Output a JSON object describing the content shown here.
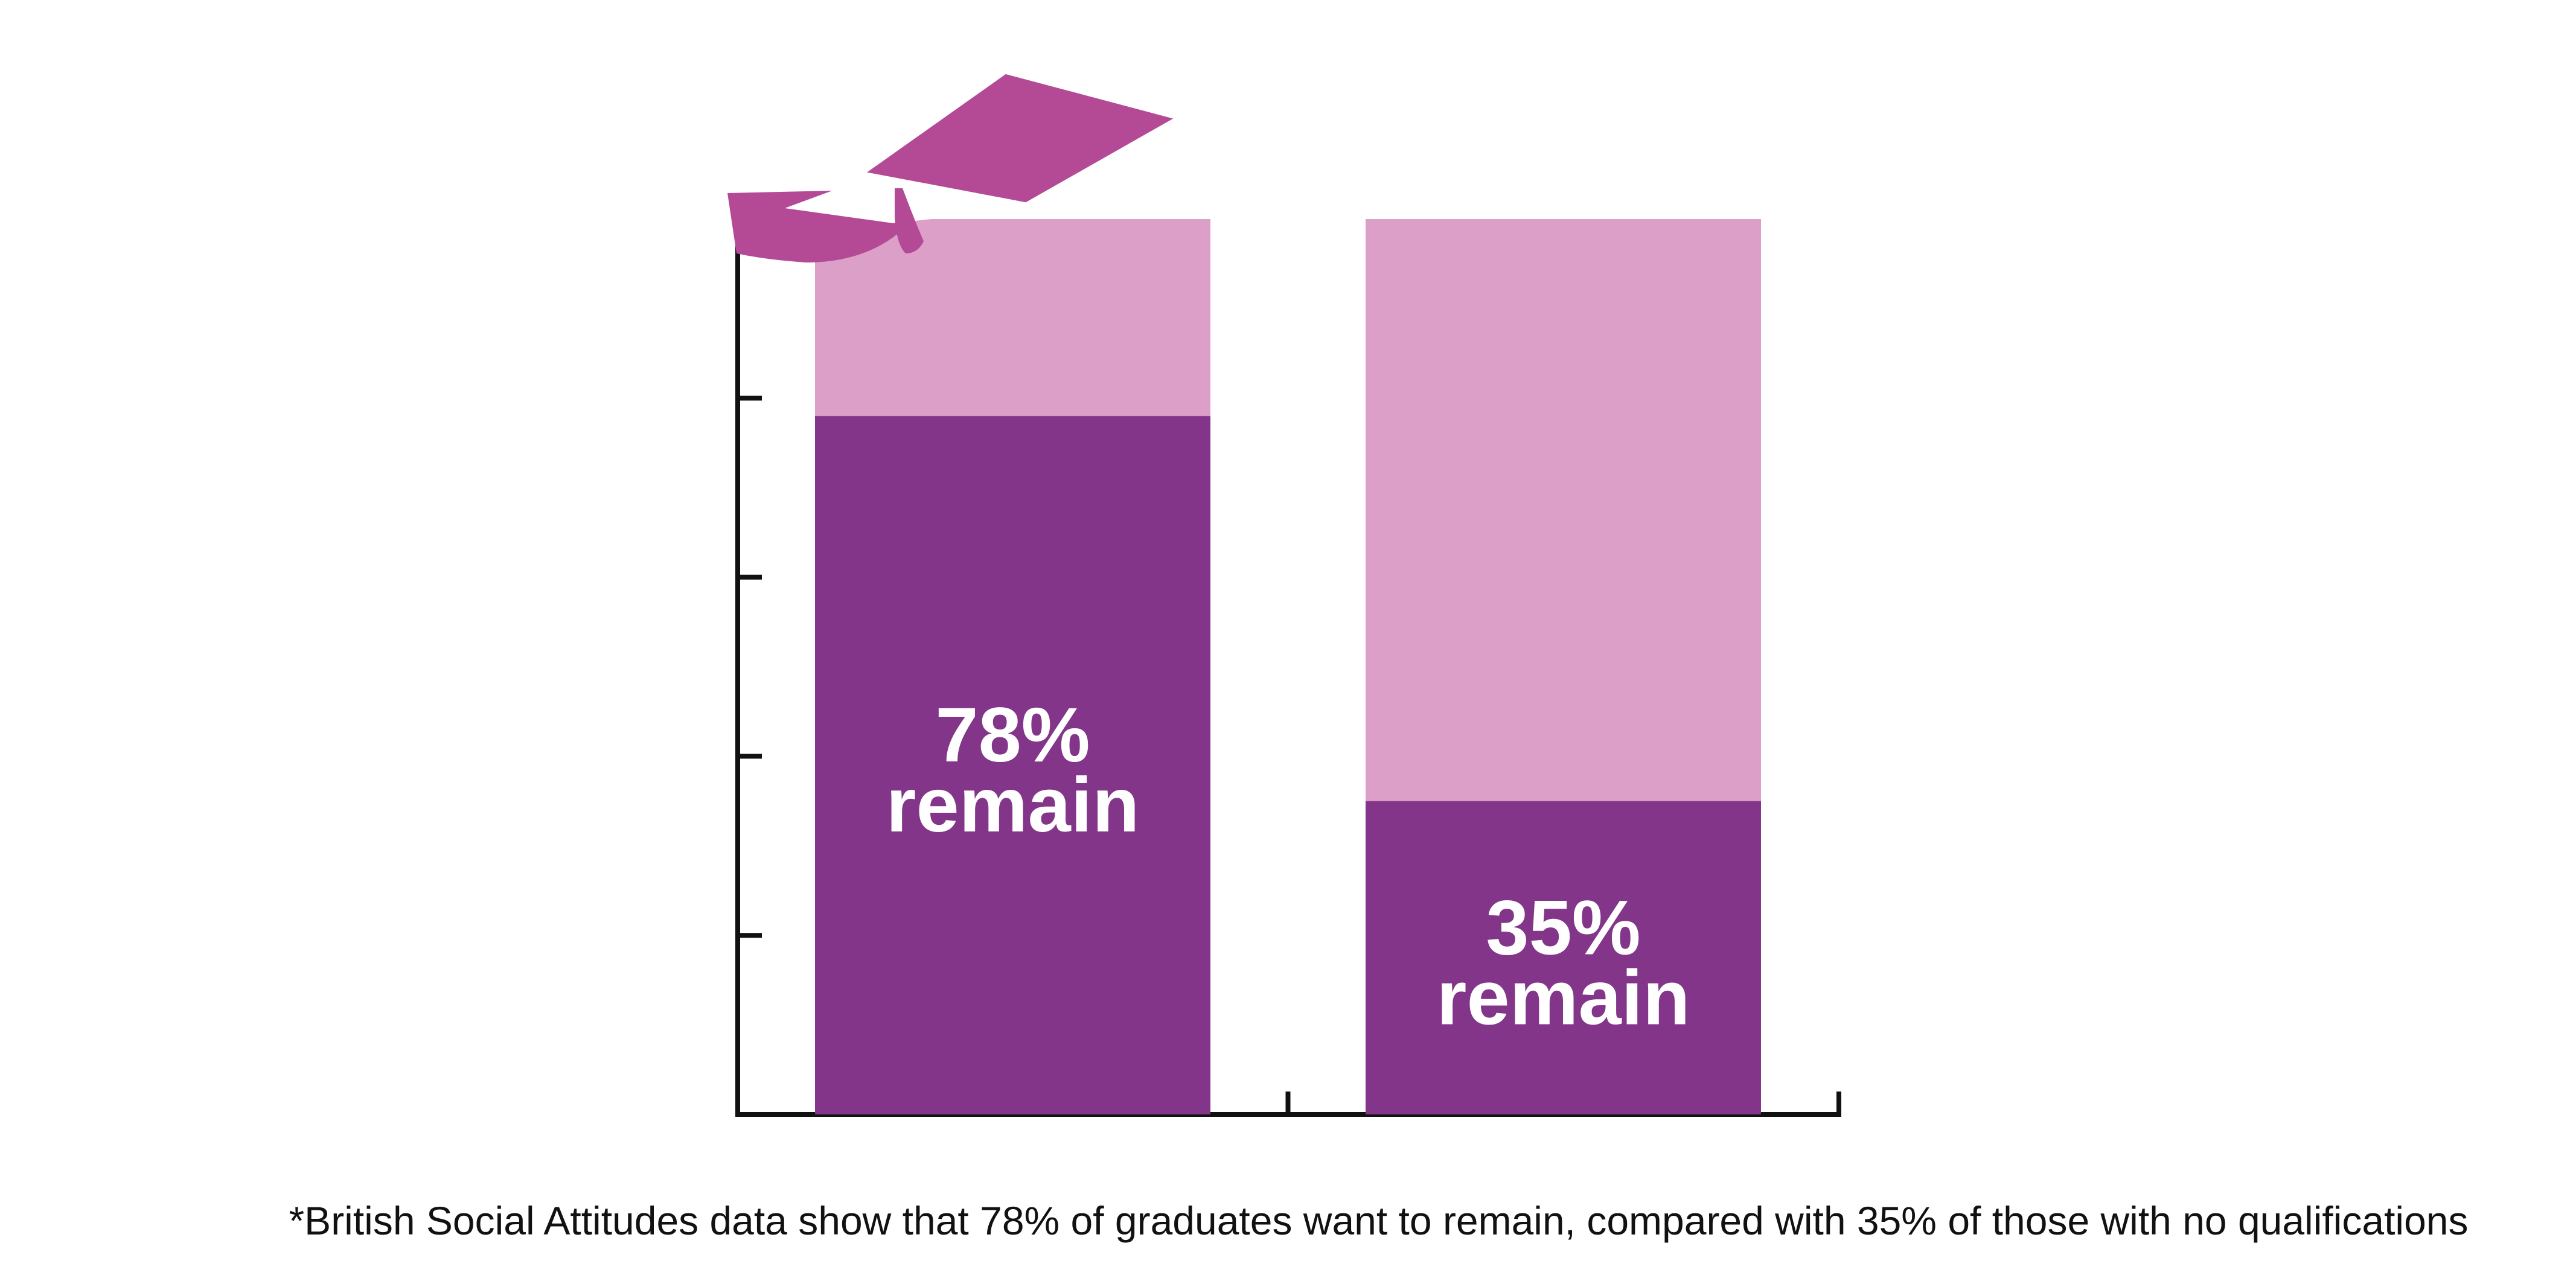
{
  "chart_data": {
    "type": "bar",
    "stacked": true,
    "categories": [
      "",
      ""
    ],
    "series": [
      {
        "values": [
          78,
          35
        ],
        "color": "#823589"
      },
      {
        "values": [
          22,
          65
        ],
        "color": "#dc9fc8"
      }
    ],
    "data_labels": [
      {
        "value": "78%",
        "text": "remain"
      },
      {
        "value": "35%",
        "text": "remain"
      }
    ],
    "ylim": [
      0,
      100
    ],
    "yticks": [
      0,
      20,
      40,
      60,
      80,
      100
    ],
    "tick_labels_shown": false,
    "grid": false,
    "icon": "graduation-cap-icon",
    "icon_color": "#b44a96",
    "footnote": "*British Social Attitudes data show that 78% of graduates want to remain, compared with 35% of those with no qualifications"
  }
}
